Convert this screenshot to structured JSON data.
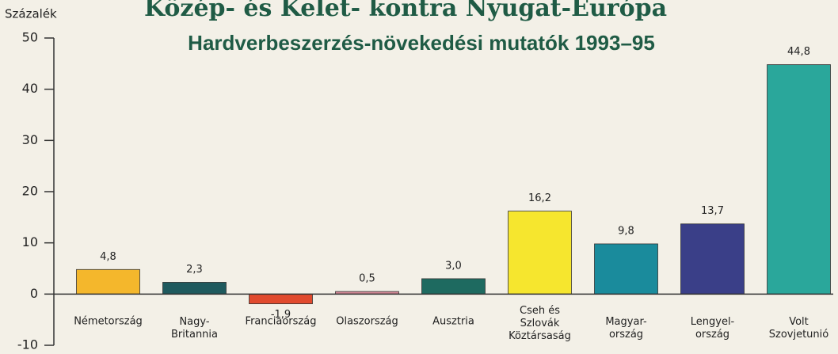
{
  "chart_data": {
    "type": "bar",
    "title": "Közép- és Kelet- kontra Nyugat-Európa",
    "subtitle": "Hardverbeszerzés-növekedési mutatók 1993–95",
    "y_label": "Százalék",
    "categories": [
      "Németország",
      "Nagy-\nBritannia",
      "Franciaország",
      "Olaszország",
      "Ausztria",
      "Cseh és\nSzlovák\nKöztársaság",
      "Magyar-\nország",
      "Lengyel-\nország",
      "Volt\nSzovjetunió"
    ],
    "values": [
      4.8,
      2.3,
      -1.9,
      0.5,
      3.0,
      16.2,
      9.8,
      13.7,
      44.8
    ],
    "value_labels": [
      "4,8",
      "2,3",
      "-1,9",
      "0,5",
      "3,0",
      "16,2",
      "9,8",
      "13,7",
      "44,8"
    ],
    "colors": [
      "#f4b72c",
      "#1f5a5e",
      "#e14a2e",
      "#d68a98",
      "#1e6a60",
      "#f6e62e",
      "#1a8b9c",
      "#3a3f88",
      "#2aa79b"
    ],
    "ylim": [
      -10,
      50
    ],
    "yticks": [
      -10,
      0,
      10,
      20,
      30,
      40,
      50
    ]
  }
}
